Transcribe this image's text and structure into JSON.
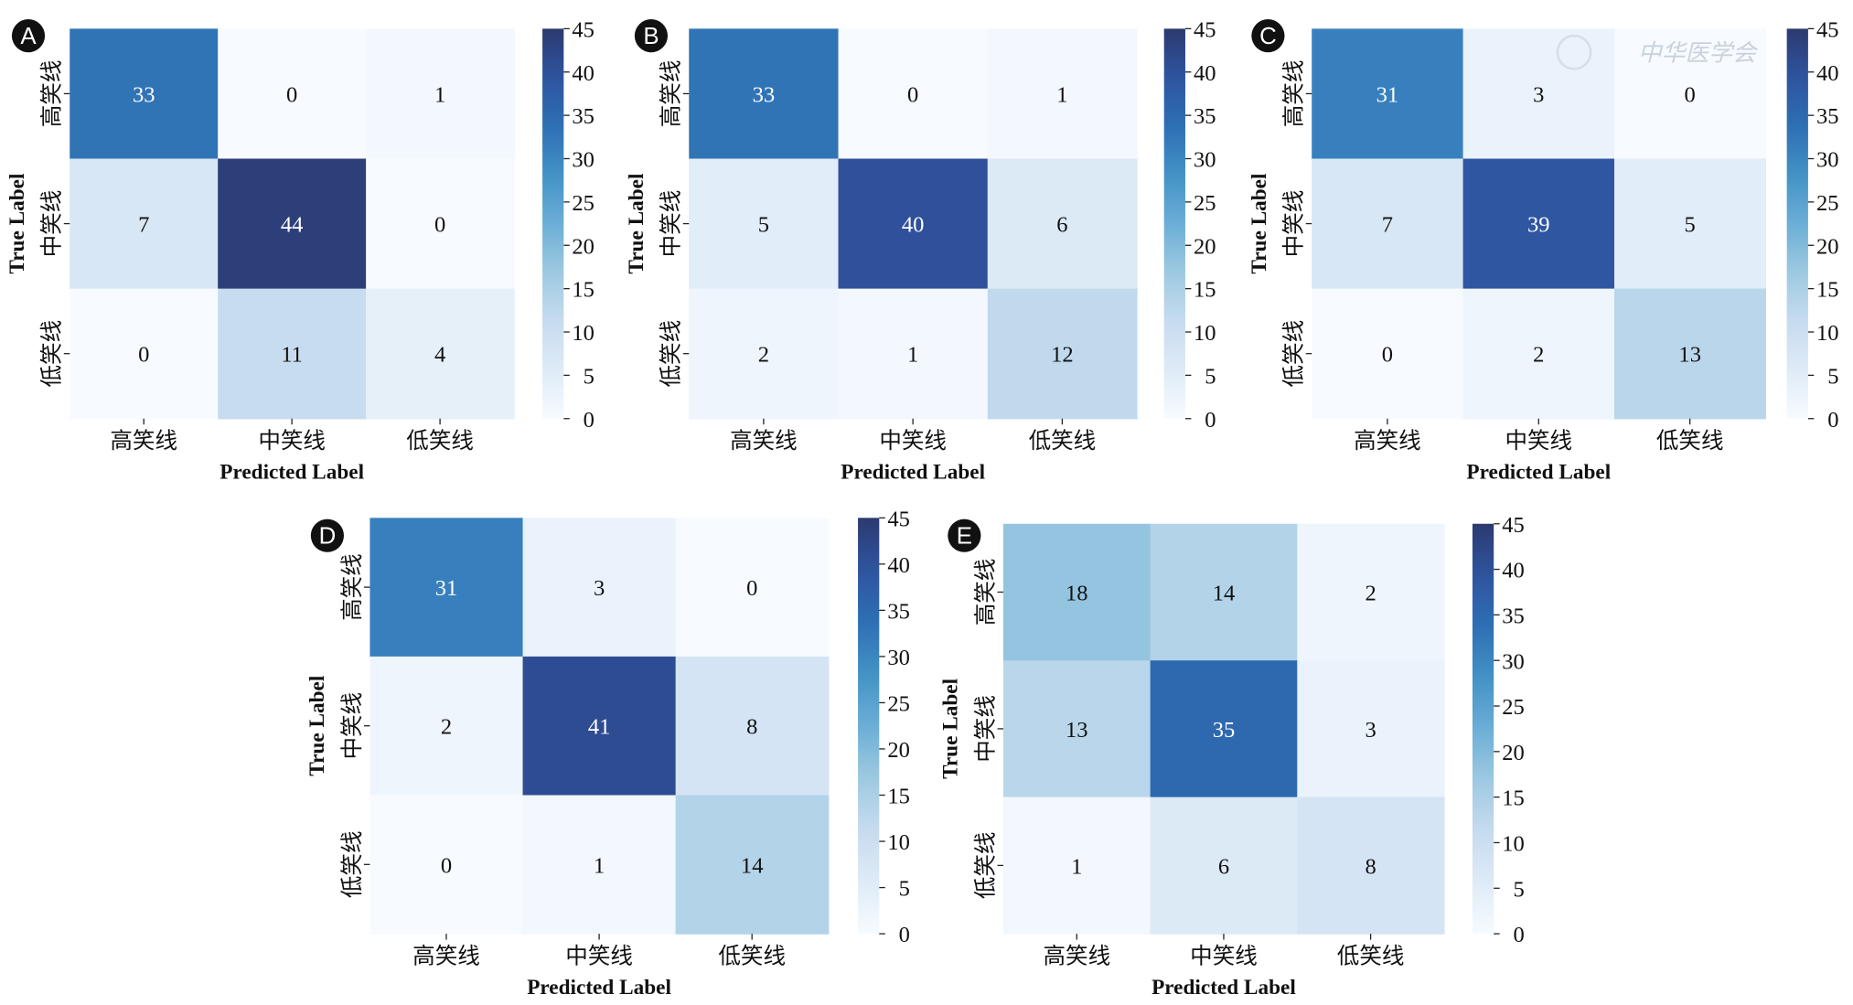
{
  "chart_data": [
    {
      "type": "heatmap",
      "panel": "A",
      "categories": [
        "高笑线",
        "中笑线",
        "低笑线"
      ],
      "xlabel": "Predicted Label",
      "ylabel": "True Label",
      "values": [
        [
          33,
          0,
          1
        ],
        [
          7,
          44,
          0
        ],
        [
          0,
          11,
          4
        ]
      ],
      "colorbar": {
        "min": 0,
        "max": 45,
        "ticks": [
          0,
          5,
          10,
          15,
          20,
          25,
          30,
          35,
          40,
          45
        ]
      }
    },
    {
      "type": "heatmap",
      "panel": "B",
      "categories": [
        "高笑线",
        "中笑线",
        "低笑线"
      ],
      "xlabel": "Predicted Label",
      "ylabel": "True Label",
      "values": [
        [
          33,
          0,
          1
        ],
        [
          5,
          40,
          6
        ],
        [
          2,
          1,
          12
        ]
      ],
      "colorbar": {
        "min": 0,
        "max": 45,
        "ticks": [
          0,
          5,
          10,
          15,
          20,
          25,
          30,
          35,
          40,
          45
        ]
      }
    },
    {
      "type": "heatmap",
      "panel": "C",
      "categories": [
        "高笑线",
        "中笑线",
        "低笑线"
      ],
      "xlabel": "Predicted Label",
      "ylabel": "True Label",
      "values": [
        [
          31,
          3,
          0
        ],
        [
          7,
          39,
          5
        ],
        [
          0,
          2,
          13
        ]
      ],
      "colorbar": {
        "min": 0,
        "max": 45,
        "ticks": [
          0,
          5,
          10,
          15,
          20,
          25,
          30,
          35,
          40,
          45
        ]
      },
      "watermark": "中华医学会"
    },
    {
      "type": "heatmap",
      "panel": "D",
      "categories": [
        "高笑线",
        "中笑线",
        "低笑线"
      ],
      "xlabel": "Predicted Label",
      "ylabel": "True Label",
      "values": [
        [
          31,
          3,
          0
        ],
        [
          2,
          41,
          8
        ],
        [
          0,
          1,
          14
        ]
      ],
      "colorbar": {
        "min": 0,
        "max": 45,
        "ticks": [
          0,
          5,
          10,
          15,
          20,
          25,
          30,
          35,
          40,
          45
        ]
      }
    },
    {
      "type": "heatmap",
      "panel": "E",
      "categories": [
        "高笑线",
        "中笑线",
        "低笑线"
      ],
      "xlabel": "Predicted Label",
      "ylabel": "True Label",
      "values": [
        [
          18,
          14,
          2
        ],
        [
          13,
          35,
          3
        ],
        [
          1,
          6,
          8
        ]
      ],
      "colorbar": {
        "min": 0,
        "max": 45,
        "ticks": [
          0,
          5,
          10,
          15,
          20,
          25,
          30,
          35,
          40,
          45
        ]
      }
    }
  ],
  "colormap": "Blues"
}
